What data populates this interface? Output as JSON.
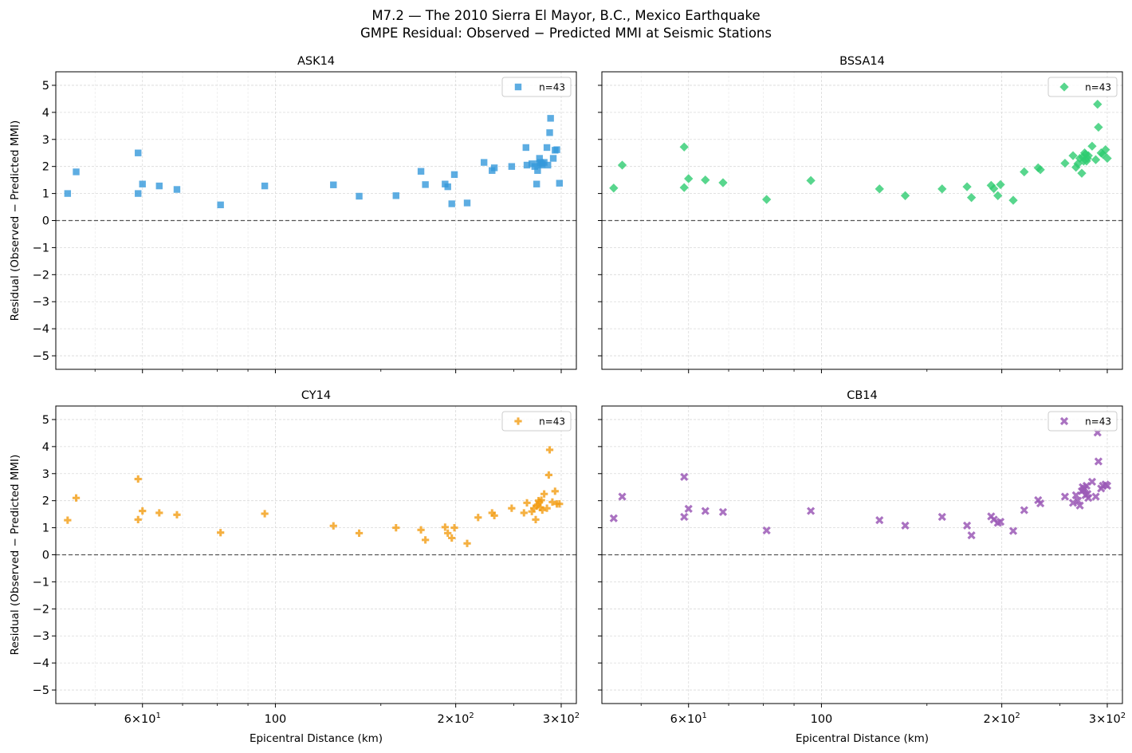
{
  "figure": {
    "title": "M7.2 — The 2010 Sierra El Mayor, B.C., Mexico Earthquake",
    "subtitle": "GMPE Residual: Observed − Predicted MMI at Seismic Stations"
  },
  "chart_data": [
    {
      "type": "scatter",
      "title": "ASK14",
      "xlabel": "",
      "ylabel": "Residual (Observed − Predicted MMI)",
      "xscale": "log",
      "xlim": [
        43,
        318
      ],
      "ylim": [
        -5.5,
        5.5
      ],
      "xticks": [
        {
          "v": 60,
          "b": "6",
          "e": "1"
        },
        {
          "v": 100,
          "b": "100",
          "e": ""
        },
        {
          "v": 200,
          "b": "2",
          "e": "2"
        },
        {
          "v": 300,
          "b": "3",
          "e": "2"
        }
      ],
      "yticks": [
        -5,
        -4,
        -3,
        -2,
        -1,
        0,
        1,
        2,
        3,
        4,
        5
      ],
      "show_xticklabels": false,
      "show_yticklabels": true,
      "grid": true,
      "legend_position": "top-right",
      "reference_line": 0,
      "series": [
        {
          "name": "n=43",
          "marker": "square",
          "color": "#3498db",
          "x": [
            45,
            46.5,
            59,
            59,
            60,
            64,
            68.5,
            81,
            96,
            125,
            138,
            159,
            175,
            178,
            192,
            194,
            197,
            199,
            209,
            223,
            230,
            232,
            248,
            262,
            263,
            268,
            271,
            273,
            274,
            275,
            276,
            277,
            278,
            279,
            281,
            284,
            285,
            287,
            288,
            291,
            293,
            295,
            298
          ],
          "y": [
            1.0,
            1.8,
            2.5,
            1.0,
            1.35,
            1.28,
            1.15,
            0.58,
            1.28,
            1.32,
            0.9,
            0.92,
            1.82,
            1.33,
            1.35,
            1.25,
            0.62,
            1.7,
            0.65,
            2.15,
            1.85,
            1.95,
            2.0,
            2.7,
            2.05,
            2.1,
            2.0,
            1.35,
            1.85,
            2.1,
            2.3,
            2.15,
            2.05,
            2.1,
            2.15,
            2.7,
            2.05,
            3.25,
            3.78,
            2.3,
            2.6,
            2.62,
            1.38
          ]
        }
      ]
    },
    {
      "type": "scatter",
      "title": "BSSA14",
      "xlabel": "",
      "ylabel": "",
      "xscale": "log",
      "xlim": [
        43,
        318
      ],
      "ylim": [
        -5.5,
        5.5
      ],
      "xticks": [
        {
          "v": 60,
          "b": "6",
          "e": "1"
        },
        {
          "v": 100,
          "b": "100",
          "e": ""
        },
        {
          "v": 200,
          "b": "2",
          "e": "2"
        },
        {
          "v": 300,
          "b": "3",
          "e": "2"
        }
      ],
      "yticks": [
        -5,
        -4,
        -3,
        -2,
        -1,
        0,
        1,
        2,
        3,
        4,
        5
      ],
      "show_xticklabels": false,
      "show_yticklabels": false,
      "grid": true,
      "legend_position": "top-right",
      "reference_line": 0,
      "series": [
        {
          "name": "n=43",
          "marker": "diamond",
          "color": "#2ecc71",
          "x": [
            45,
            46.5,
            59,
            59,
            60,
            64,
            68.5,
            81,
            96,
            125,
            138,
            159,
            175,
            178,
            192,
            194,
            197,
            199,
            209,
            218,
            230,
            232,
            255,
            263,
            266,
            268,
            270,
            272,
            273,
            274,
            275,
            276,
            277,
            278,
            279,
            283,
            287,
            289,
            290,
            293,
            295,
            298,
            300
          ],
          "y": [
            1.2,
            2.05,
            2.72,
            1.22,
            1.55,
            1.5,
            1.4,
            0.78,
            1.48,
            1.17,
            0.92,
            1.17,
            1.25,
            0.85,
            1.3,
            1.18,
            0.92,
            1.33,
            0.75,
            1.8,
            1.95,
            1.88,
            2.12,
            2.4,
            1.97,
            2.1,
            2.3,
            1.75,
            2.35,
            2.2,
            2.5,
            2.45,
            2.2,
            2.3,
            2.4,
            2.75,
            2.25,
            4.3,
            3.45,
            2.5,
            2.45,
            2.62,
            2.3
          ]
        }
      ]
    },
    {
      "type": "scatter",
      "title": "CY14",
      "xlabel": "Epicentral Distance (km)",
      "ylabel": "Residual (Observed − Predicted MMI)",
      "xscale": "log",
      "xlim": [
        43,
        318
      ],
      "ylim": [
        -5.5,
        5.5
      ],
      "xticks": [
        {
          "v": 60,
          "b": "6",
          "e": "1"
        },
        {
          "v": 100,
          "b": "100",
          "e": ""
        },
        {
          "v": 200,
          "b": "2",
          "e": "2"
        },
        {
          "v": 300,
          "b": "3",
          "e": "2"
        }
      ],
      "yticks": [
        -5,
        -4,
        -3,
        -2,
        -1,
        0,
        1,
        2,
        3,
        4,
        5
      ],
      "show_xticklabels": true,
      "show_yticklabels": true,
      "grid": true,
      "legend_position": "top-right",
      "reference_line": 0,
      "series": [
        {
          "name": "n=43",
          "marker": "plus",
          "color": "#f39c12",
          "x": [
            45,
            46.5,
            59,
            59,
            60,
            64,
            68.5,
            81,
            96,
            125,
            138,
            159,
            175,
            178,
            192,
            194,
            197,
            199,
            209,
            218,
            230,
            232,
            248,
            260,
            263,
            268,
            270,
            272,
            273,
            274,
            275,
            276,
            277,
            278,
            279,
            281,
            284,
            286,
            287,
            290,
            293,
            295,
            298
          ],
          "y": [
            1.28,
            2.1,
            2.8,
            1.3,
            1.62,
            1.55,
            1.48,
            0.82,
            1.52,
            1.07,
            0.8,
            1.0,
            0.92,
            0.55,
            1.02,
            0.8,
            0.62,
            1.0,
            0.42,
            1.38,
            1.55,
            1.45,
            1.72,
            1.55,
            1.92,
            1.6,
            1.72,
            1.3,
            1.8,
            1.85,
            2.0,
            1.95,
            1.75,
            2.02,
            1.65,
            2.25,
            1.72,
            2.95,
            3.88,
            1.95,
            2.35,
            1.88,
            1.88
          ]
        }
      ]
    },
    {
      "type": "scatter",
      "title": "CB14",
      "xlabel": "Epicentral Distance (km)",
      "ylabel": "",
      "xscale": "log",
      "xlim": [
        43,
        318
      ],
      "ylim": [
        -5.5,
        5.5
      ],
      "xticks": [
        {
          "v": 60,
          "b": "6",
          "e": "1"
        },
        {
          "v": 100,
          "b": "100",
          "e": ""
        },
        {
          "v": 200,
          "b": "2",
          "e": "2"
        },
        {
          "v": 300,
          "b": "3",
          "e": "2"
        }
      ],
      "yticks": [
        -5,
        -4,
        -3,
        -2,
        -1,
        0,
        1,
        2,
        3,
        4,
        5
      ],
      "show_xticklabels": true,
      "show_yticklabels": false,
      "grid": true,
      "legend_position": "top-right",
      "reference_line": 0,
      "series": [
        {
          "name": "n=43",
          "marker": "x",
          "color": "#9b59b6",
          "x": [
            45,
            46.5,
            59,
            59,
            60,
            64,
            68.5,
            81,
            96,
            125,
            138,
            159,
            175,
            178,
            192,
            194,
            197,
            199,
            209,
            218,
            230,
            232,
            255,
            263,
            266,
            268,
            270,
            272,
            273,
            274,
            275,
            276,
            277,
            278,
            279,
            283,
            287,
            289,
            290,
            293,
            295,
            298,
            300
          ],
          "y": [
            1.35,
            2.15,
            2.88,
            1.4,
            1.7,
            1.62,
            1.58,
            0.9,
            1.62,
            1.28,
            1.08,
            1.4,
            1.08,
            0.72,
            1.42,
            1.3,
            1.18,
            1.22,
            0.88,
            1.65,
            2.02,
            1.9,
            2.15,
            1.92,
            2.2,
            2.0,
            1.82,
            2.35,
            2.5,
            2.4,
            2.45,
            2.2,
            2.55,
            2.25,
            2.1,
            2.7,
            2.15,
            4.52,
            3.45,
            2.45,
            2.55,
            2.6,
            2.55
          ]
        }
      ]
    }
  ]
}
